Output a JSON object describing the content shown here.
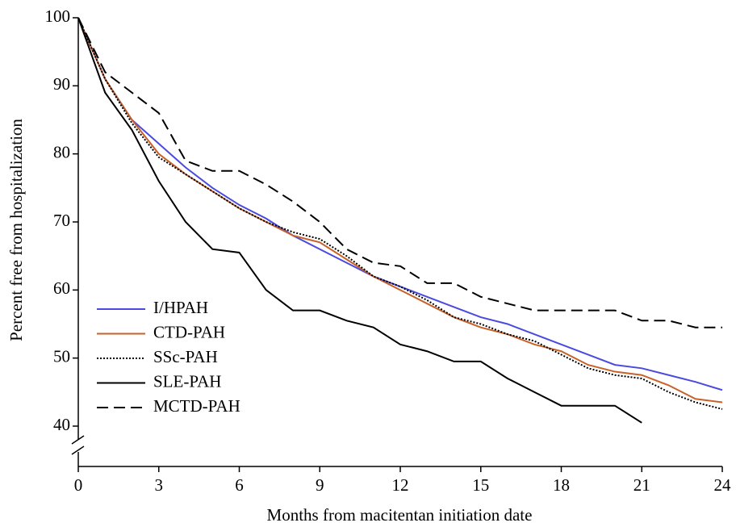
{
  "chart_data": {
    "type": "line",
    "x_label": "Months from macitentan initiation date",
    "y_label": "Percent free from hospitalization",
    "x": [
      0,
      1,
      2,
      3,
      4,
      5,
      6,
      7,
      8,
      9,
      10,
      11,
      12,
      13,
      14,
      15,
      16,
      17,
      18,
      19,
      20,
      21,
      22,
      23,
      24
    ],
    "xlim": [
      0,
      24
    ],
    "xticks": [
      0,
      3,
      6,
      9,
      12,
      15,
      18,
      21,
      24
    ],
    "ylim": [
      40,
      100
    ],
    "yticks": [
      40,
      50,
      60,
      70,
      80,
      90,
      100
    ],
    "series": [
      {
        "name": "I/HPAH",
        "color": "#4a4ae0",
        "dash": "solid",
        "values": [
          100,
          91,
          85,
          81.5,
          78,
          75,
          72.5,
          70.5,
          68,
          66,
          64,
          62,
          60.5,
          59,
          57.5,
          56,
          55,
          53.5,
          52,
          50.5,
          49,
          48.5,
          47.5,
          46.5,
          45.3
        ]
      },
      {
        "name": "CTD-PAH",
        "color": "#c8612a",
        "dash": "solid",
        "values": [
          100,
          91,
          85,
          80,
          77,
          74.5,
          72,
          70,
          68,
          67,
          64.5,
          62,
          60,
          58,
          56,
          54.5,
          53.5,
          52,
          51,
          49,
          48,
          47.5,
          46,
          44,
          43.5
        ]
      },
      {
        "name": "SSc-PAH",
        "color": "#000000",
        "dash": "dotted",
        "values": [
          100,
          91,
          84.5,
          79.5,
          77,
          74.5,
          72,
          70,
          68.5,
          67.5,
          65,
          62,
          60.5,
          58.5,
          56,
          55,
          53.5,
          52.5,
          50.5,
          48.5,
          47.5,
          47,
          45,
          43.5,
          42.5
        ]
      },
      {
        "name": "SLE-PAH",
        "color": "#000000",
        "dash": "solid",
        "values": [
          100,
          89,
          83.5,
          76,
          70,
          66,
          65.5,
          60,
          57,
          57,
          55.5,
          54.5,
          52,
          51,
          49.5,
          49.5,
          47,
          45,
          43,
          43,
          43,
          40.5,
          null,
          null,
          null
        ]
      },
      {
        "name": "MCTD-PAH",
        "color": "#000000",
        "dash": "dashed",
        "values": [
          100,
          92,
          89,
          86,
          79,
          77.5,
          77.5,
          75.5,
          73,
          70,
          66,
          64,
          63.5,
          61,
          61,
          59,
          58,
          57,
          57,
          57,
          57,
          55.5,
          55.5,
          54.5,
          54.5
        ]
      }
    ]
  }
}
